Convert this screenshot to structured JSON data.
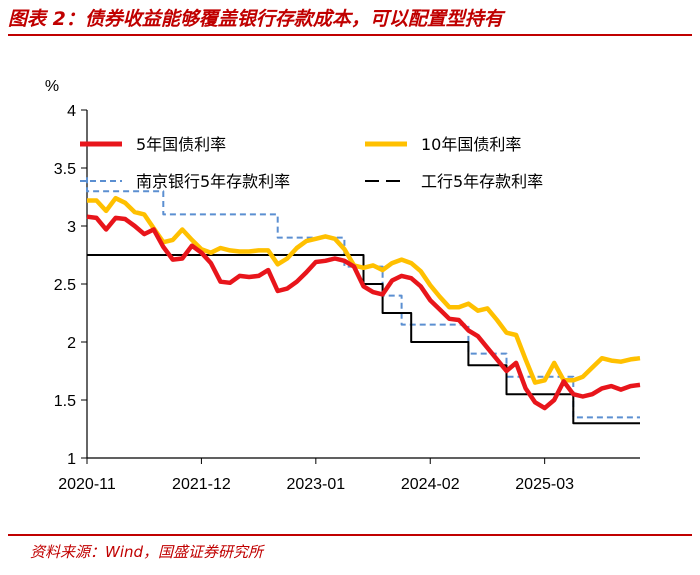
{
  "figure": {
    "title": "图表 2：债券收益能够覆盖银行存款成本，可以配置型持有",
    "source": "资料来源：Wind，国盛证券研究所"
  },
  "chart_data": {
    "type": "line",
    "ylabel": "%",
    "ylim": [
      1,
      4
    ],
    "yticks": [
      1,
      1.5,
      2,
      2.5,
      3,
      3.5,
      4
    ],
    "ytick_labels": [
      "1",
      "1.5",
      "2",
      "2.5",
      "3",
      "3.5",
      "4"
    ],
    "xlim": [
      0,
      58
    ],
    "xtick_positions": [
      0,
      12,
      24,
      36,
      48
    ],
    "xtick_labels": [
      "2020-11",
      "2021-12",
      "2023-01",
      "2024-02",
      "2025-03"
    ],
    "x_note": "monthly index, 0 = 2020-11",
    "legend": {
      "placement": "top"
    },
    "series": [
      {
        "name": "5年国债利率",
        "color": "#e8151b",
        "style": "solid-thick",
        "points": [
          [
            0,
            3.08
          ],
          [
            1,
            3.07
          ],
          [
            2,
            2.97
          ],
          [
            3,
            3.07
          ],
          [
            4,
            3.06
          ],
          [
            5,
            3.0
          ],
          [
            6,
            2.93
          ],
          [
            7,
            2.97
          ],
          [
            8,
            2.82
          ],
          [
            9,
            2.71
          ],
          [
            10,
            2.72
          ],
          [
            11,
            2.83
          ],
          [
            12,
            2.77
          ],
          [
            13,
            2.68
          ],
          [
            14,
            2.52
          ],
          [
            15,
            2.51
          ],
          [
            16,
            2.57
          ],
          [
            17,
            2.56
          ],
          [
            18,
            2.57
          ],
          [
            19,
            2.62
          ],
          [
            20,
            2.44
          ],
          [
            21,
            2.46
          ],
          [
            22,
            2.52
          ],
          [
            23,
            2.6
          ],
          [
            24,
            2.69
          ],
          [
            25,
            2.7
          ],
          [
            26,
            2.72
          ],
          [
            27,
            2.7
          ],
          [
            28,
            2.65
          ],
          [
            29,
            2.48
          ],
          [
            30,
            2.43
          ],
          [
            31,
            2.41
          ],
          [
            32,
            2.53
          ],
          [
            33,
            2.57
          ],
          [
            34,
            2.55
          ],
          [
            35,
            2.48
          ],
          [
            36,
            2.36
          ],
          [
            37,
            2.28
          ],
          [
            38,
            2.2
          ],
          [
            39,
            2.19
          ],
          [
            40,
            2.1
          ],
          [
            41,
            2.05
          ],
          [
            42,
            1.95
          ],
          [
            43,
            1.85
          ],
          [
            44,
            1.75
          ],
          [
            45,
            1.82
          ],
          [
            46,
            1.6
          ],
          [
            47,
            1.48
          ],
          [
            48,
            1.43
          ],
          [
            49,
            1.5
          ],
          [
            50,
            1.66
          ],
          [
            51,
            1.55
          ],
          [
            52,
            1.53
          ],
          [
            53,
            1.55
          ],
          [
            54,
            1.6
          ],
          [
            55,
            1.62
          ],
          [
            56,
            1.59
          ],
          [
            57,
            1.62
          ],
          [
            58,
            1.63
          ]
        ]
      },
      {
        "name": "10年国债利率",
        "color": "#ffc000",
        "style": "solid-thick",
        "points": [
          [
            0,
            3.22
          ],
          [
            1,
            3.22
          ],
          [
            2,
            3.13
          ],
          [
            3,
            3.24
          ],
          [
            4,
            3.2
          ],
          [
            5,
            3.12
          ],
          [
            6,
            3.1
          ],
          [
            7,
            2.98
          ],
          [
            8,
            2.86
          ],
          [
            9,
            2.88
          ],
          [
            10,
            2.97
          ],
          [
            11,
            2.88
          ],
          [
            12,
            2.8
          ],
          [
            13,
            2.77
          ],
          [
            14,
            2.81
          ],
          [
            15,
            2.79
          ],
          [
            16,
            2.78
          ],
          [
            17,
            2.78
          ],
          [
            18,
            2.79
          ],
          [
            19,
            2.79
          ],
          [
            20,
            2.67
          ],
          [
            21,
            2.72
          ],
          [
            22,
            2.81
          ],
          [
            23,
            2.87
          ],
          [
            24,
            2.89
          ],
          [
            25,
            2.91
          ],
          [
            26,
            2.89
          ],
          [
            27,
            2.8
          ],
          [
            28,
            2.66
          ],
          [
            29,
            2.64
          ],
          [
            30,
            2.66
          ],
          [
            31,
            2.62
          ],
          [
            32,
            2.68
          ],
          [
            33,
            2.71
          ],
          [
            34,
            2.68
          ],
          [
            35,
            2.61
          ],
          [
            36,
            2.49
          ],
          [
            37,
            2.39
          ],
          [
            38,
            2.3
          ],
          [
            39,
            2.3
          ],
          [
            40,
            2.33
          ],
          [
            41,
            2.27
          ],
          [
            42,
            2.29
          ],
          [
            43,
            2.19
          ],
          [
            44,
            2.08
          ],
          [
            45,
            2.06
          ],
          [
            46,
            1.85
          ],
          [
            47,
            1.65
          ],
          [
            48,
            1.67
          ],
          [
            49,
            1.82
          ],
          [
            50,
            1.67
          ],
          [
            51,
            1.67
          ],
          [
            52,
            1.7
          ],
          [
            53,
            1.78
          ],
          [
            54,
            1.86
          ],
          [
            55,
            1.84
          ],
          [
            56,
            1.83
          ],
          [
            57,
            1.85
          ],
          [
            58,
            1.86
          ]
        ]
      },
      {
        "name": "南京银行5年存款利率",
        "color": "#5b8fd1",
        "style": "dashed",
        "points": [
          [
            0,
            3.42
          ],
          [
            0,
            3.3
          ],
          [
            8,
            3.3
          ],
          [
            8,
            3.1
          ],
          [
            20,
            3.1
          ],
          [
            20,
            2.9
          ],
          [
            27,
            2.9
          ],
          [
            27,
            2.65
          ],
          [
            31,
            2.65
          ],
          [
            31,
            2.4
          ],
          [
            33,
            2.4
          ],
          [
            33,
            2.15
          ],
          [
            40,
            2.15
          ],
          [
            40,
            1.9
          ],
          [
            44,
            1.9
          ],
          [
            44,
            1.7
          ],
          [
            51,
            1.7
          ],
          [
            51,
            1.35
          ],
          [
            58,
            1.35
          ]
        ]
      },
      {
        "name": "工行5年存款利率",
        "color": "#000000",
        "style": "solid-thin",
        "points": [
          [
            0,
            2.75
          ],
          [
            29,
            2.75
          ],
          [
            29,
            2.5
          ],
          [
            31,
            2.5
          ],
          [
            31,
            2.25
          ],
          [
            34,
            2.25
          ],
          [
            34,
            2.0
          ],
          [
            40,
            2.0
          ],
          [
            40,
            1.8
          ],
          [
            44,
            1.8
          ],
          [
            44,
            1.55
          ],
          [
            51,
            1.55
          ],
          [
            51,
            1.3
          ],
          [
            58,
            1.3
          ]
        ]
      }
    ]
  }
}
